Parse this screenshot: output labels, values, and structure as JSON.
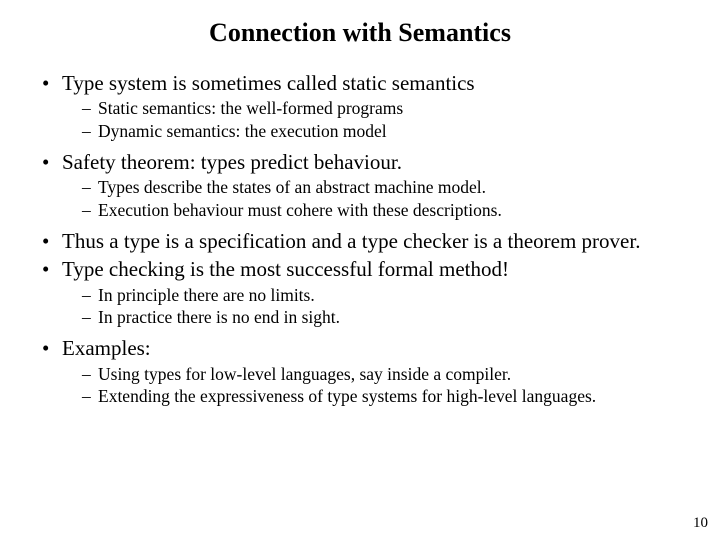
{
  "title": "Connection with Semantics",
  "b1": "Type system is sometimes called static semantics",
  "b1_1": "Static semantics: the well-formed programs",
  "b1_2": "Dynamic semantics: the execution model",
  "b2": "Safety theorem: types predict behaviour.",
  "b2_1": "Types describe the states of an abstract machine model.",
  "b2_2": "Execution behaviour must cohere with these descriptions.",
  "b3": "Thus a type is a specification and a type checker is a theorem prover.",
  "b4": "Type checking is the most successful formal method!",
  "b4_1": "In principle there are no limits.",
  "b4_2": "In practice there is no end in sight.",
  "b5": "Examples:",
  "b5_1": "Using types for low-level languages, say inside a compiler.",
  "b5_2": "Extending the expressiveness of type systems for high-level languages.",
  "page_number": "10",
  "colors": {
    "bg": "#ffffff",
    "text": "#000000"
  },
  "fonts": {
    "family": "Times New Roman",
    "title_size_pt": 26,
    "l1_size_pt": 21,
    "l2_size_pt": 17.5
  }
}
